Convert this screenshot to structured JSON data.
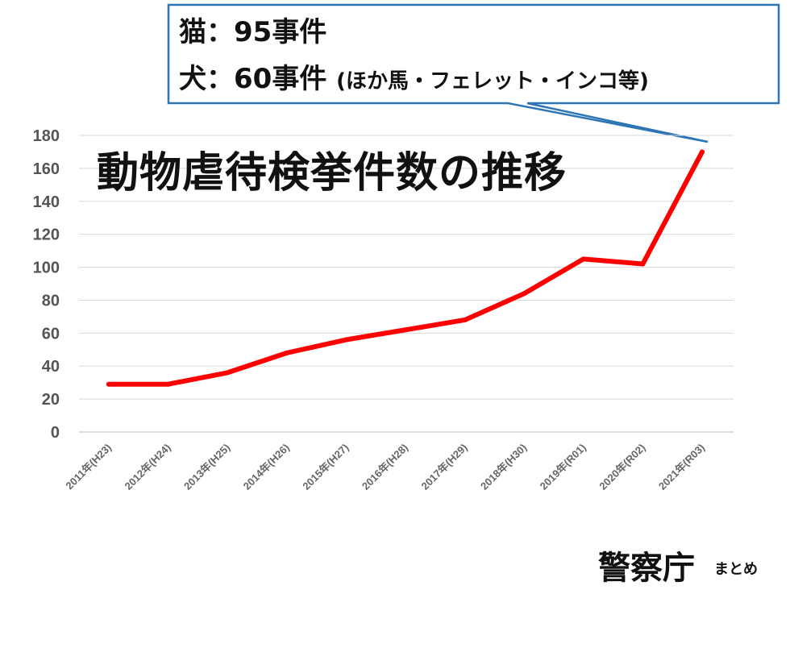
{
  "chart_data": {
    "type": "line",
    "title": "動物虐待検挙件数の推移",
    "categories": [
      "2011年(H23)",
      "2012年(H24)",
      "2013年(H25)",
      "2014年(H26)",
      "2015年(H27)",
      "2016年(H28)",
      "2017年(H29)",
      "2018年(H30)",
      "2019年(R01)",
      "2020年(R02)",
      "2021年(R03)"
    ],
    "series": [
      {
        "values": [
          29,
          29,
          36,
          48,
          56,
          62,
          68,
          84,
          105,
          102,
          170
        ],
        "color": "#ff0000"
      }
    ],
    "yticks": [
      "0",
      "20",
      "40",
      "60",
      "80",
      "100",
      "120",
      "140",
      "160",
      "180"
    ],
    "ylim": [
      0,
      180
    ],
    "grid": true,
    "annotation": {
      "line1": "猫：95事件",
      "line2": "犬：60事件",
      "line2_paren": "(ほか馬・フェレット・インコ等)"
    },
    "source": {
      "main": "警察庁",
      "sub": "まとめ"
    }
  }
}
